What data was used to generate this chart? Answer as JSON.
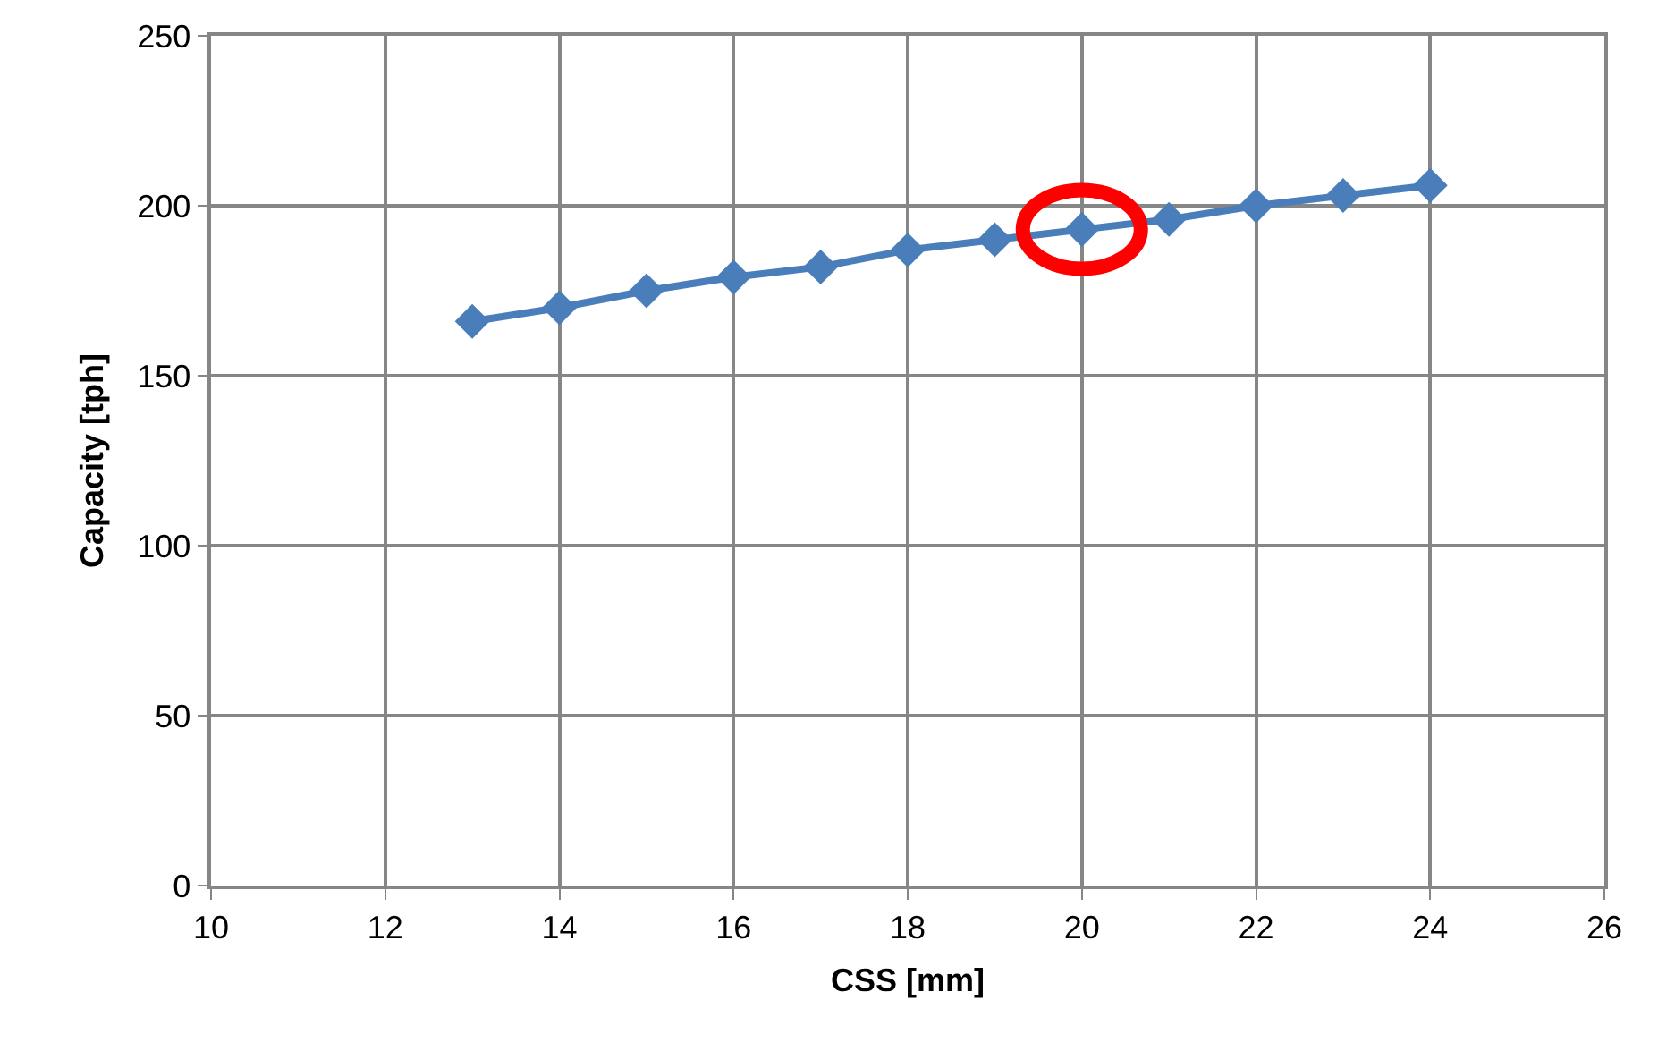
{
  "chart_data": {
    "type": "line",
    "xlabel": "CSS [mm]",
    "ylabel": "Capacity [tph]",
    "x": [
      13,
      14,
      15,
      16,
      17,
      18,
      19,
      20,
      21,
      22,
      23,
      24
    ],
    "series": [
      {
        "color": "#4a7ebb",
        "values": [
          166,
          170,
          175,
          179,
          182,
          187,
          190,
          193,
          196,
          200,
          203,
          206
        ]
      }
    ],
    "xlim": [
      10,
      26
    ],
    "xticks": [
      10,
      12,
      14,
      16,
      18,
      20,
      22,
      24,
      26
    ],
    "ylim": [
      0,
      250
    ],
    "yticks": [
      0,
      50,
      100,
      150,
      200,
      250
    ],
    "grid": true,
    "marker": "diamond",
    "line_style": "solid"
  }
}
